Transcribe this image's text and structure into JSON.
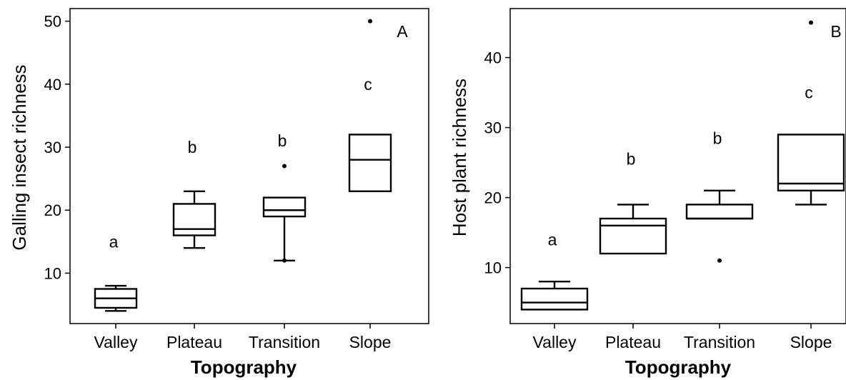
{
  "chart_data": [
    {
      "type": "box",
      "panel_label": "A",
      "xlabel": "Topography",
      "ylabel": "Galling  insect  richness",
      "ylim": [
        2,
        52
      ],
      "yticks": [
        10,
        20,
        30,
        40,
        50
      ],
      "categories": [
        "Valley",
        "Plateau",
        "Transition",
        "Slope"
      ],
      "boxes": [
        {
          "min": 4,
          "q1": 4.5,
          "median": 6,
          "q3": 7.5,
          "max": 8,
          "outliers": [],
          "letter": "a",
          "letter_y": 15
        },
        {
          "min": 14,
          "q1": 16,
          "median": 17,
          "q3": 21,
          "max": 23,
          "outliers": [],
          "letter": "b",
          "letter_y": 30
        },
        {
          "min": 12,
          "q1": 19,
          "median": 20,
          "q3": 22,
          "max": 22,
          "outliers": [
            27,
            12
          ],
          "letter": "b",
          "letter_y": 31
        },
        {
          "min": 23,
          "q1": 23,
          "median": 28,
          "q3": 32,
          "max": 32,
          "outliers": [
            50
          ],
          "letter": "c",
          "letter_y": 40
        }
      ]
    },
    {
      "type": "box",
      "panel_label": "B",
      "xlabel": "Topography",
      "ylabel": "Host  plant  richness",
      "ylim": [
        2,
        47
      ],
      "yticks": [
        10,
        20,
        30,
        40
      ],
      "categories": [
        "Valley",
        "Plateau",
        "Transition",
        "Slope"
      ],
      "boxes": [
        {
          "min": 4,
          "q1": 4,
          "median": 5,
          "q3": 7,
          "max": 8,
          "outliers": [],
          "letter": "a",
          "letter_y": 14
        },
        {
          "min": 12,
          "q1": 12,
          "median": 16,
          "q3": 17,
          "max": 19,
          "outliers": [],
          "letter": "b",
          "letter_y": 25.5
        },
        {
          "min": 17,
          "q1": 17,
          "median": 17,
          "q3": 19,
          "max": 21,
          "outliers": [
            11
          ],
          "letter": "b",
          "letter_y": 28.5
        },
        {
          "min": 19,
          "q1": 21,
          "median": 22,
          "q3": 29,
          "max": 29,
          "outliers": [
            45
          ],
          "letter": "c",
          "letter_y": 35
        }
      ]
    }
  ]
}
